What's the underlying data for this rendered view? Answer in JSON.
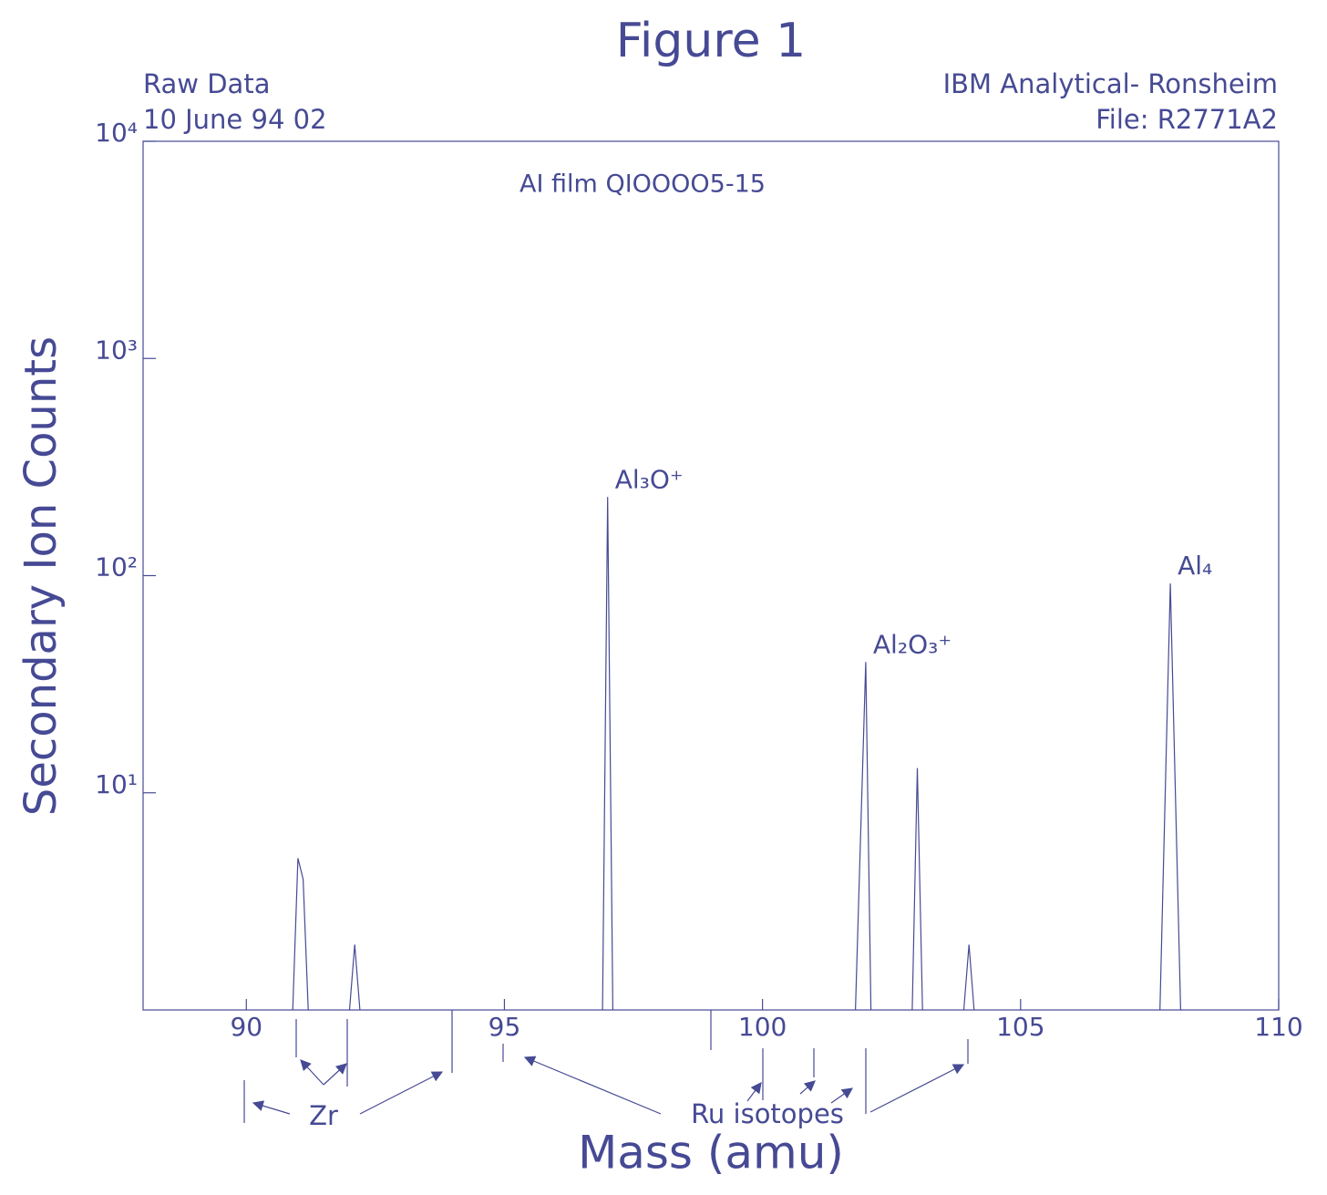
{
  "chart_data": {
    "type": "line",
    "title": "Figure 1",
    "subtitle_left": [
      "Raw Data",
      "10 June 94 02"
    ],
    "subtitle_right": [
      "IBM Analytical- Ronsheim",
      "File: R2771A2"
    ],
    "plot_label": "AI film QIOOOO5-15",
    "x_label": "Mass (amu)",
    "y_label": "Secondary Ion Counts",
    "color": "#464a94",
    "log_y": true,
    "xlim": [
      88,
      110
    ],
    "xticks": [
      90,
      95,
      100,
      105,
      110
    ],
    "ylim": [
      1,
      10000
    ],
    "yticks": [
      {
        "value": 10,
        "label": "10¹"
      },
      {
        "value": 100,
        "label": "10²"
      },
      {
        "value": 1000,
        "label": "10³"
      },
      {
        "value": 10000,
        "label": "10⁴"
      }
    ],
    "x": [
      90.9,
      91.0,
      91.1,
      91.2,
      null,
      92.0,
      92.1,
      92.2,
      null,
      96.9,
      97.0,
      97.1,
      null,
      101.8,
      102.0,
      102.1,
      null,
      102.9,
      103.0,
      103.1,
      null,
      103.9,
      104.0,
      104.1,
      null,
      107.7,
      107.9,
      108.1
    ],
    "values": [
      1,
      5,
      4,
      1,
      null,
      1,
      2,
      1,
      null,
      1,
      230,
      1,
      null,
      1,
      40,
      1,
      null,
      1,
      13,
      1,
      null,
      1,
      2,
      1,
      null,
      1,
      92,
      1
    ],
    "annotations": [
      {
        "text": "Al₃O⁺",
        "x": 97.0,
        "y": 230
      },
      {
        "text": "Al₂O₃⁺",
        "x": 102.0,
        "y": 40
      },
      {
        "text": "Al₄",
        "x": 107.9,
        "y": 92
      }
    ],
    "isotope_labels": [
      "Zr",
      "Ru isotopes"
    ]
  }
}
